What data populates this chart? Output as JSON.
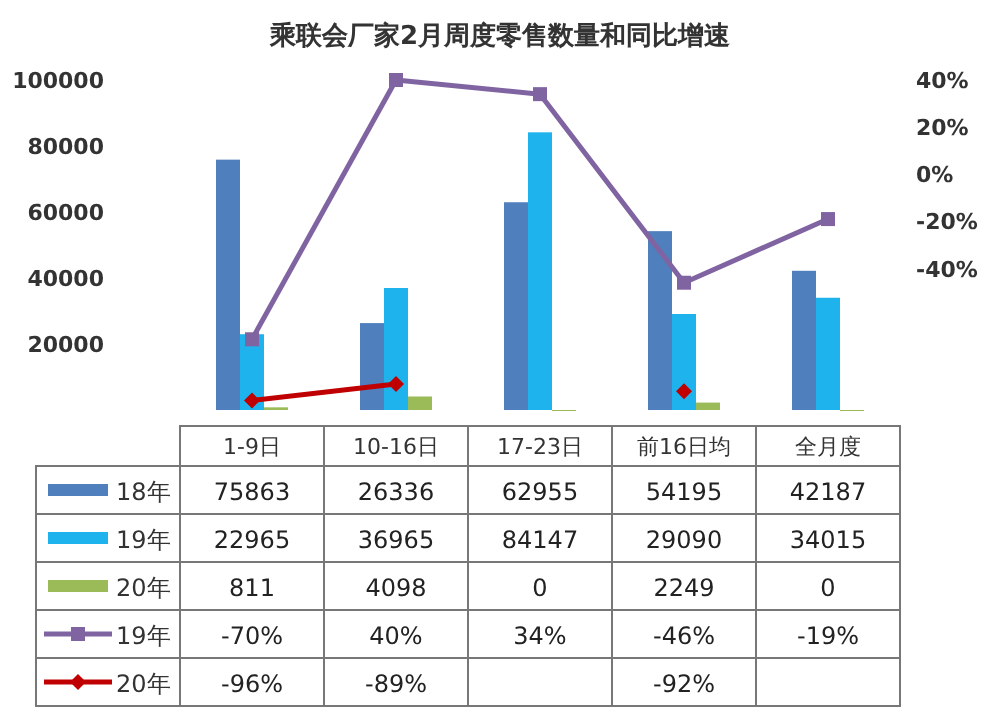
{
  "chart_data": {
    "type": "bar",
    "title": "乘联会厂家2月周度零售数量和同比增速",
    "categories": [
      "1-9日",
      "10-16日",
      "17-23日",
      "前16日均",
      "全月度"
    ],
    "series": [
      {
        "name": "18年",
        "color": "#4f7fbd",
        "values": [
          75863,
          26336,
          62955,
          54195,
          42187
        ]
      },
      {
        "name": "19年",
        "color": "#1fb3ee",
        "values": [
          22965,
          36965,
          84147,
          29090,
          34015
        ]
      },
      {
        "name": "20年",
        "color": "#9bbb59",
        "values": [
          811,
          4098,
          0,
          2249,
          0
        ]
      },
      {
        "name": "19年",
        "type": "line",
        "axis": "y2",
        "marker": "square",
        "color": "#8064a2",
        "values": [
          -70,
          40,
          34,
          -46,
          -19
        ],
        "value_labels": [
          "-70%",
          "40%",
          "34%",
          "-46%",
          "-19%"
        ]
      },
      {
        "name": "20年",
        "type": "line",
        "axis": "y2",
        "marker": "diamond",
        "color": "#c00000",
        "values": [
          -96,
          -89,
          null,
          -92,
          null
        ],
        "value_labels": [
          "-96%",
          "-89%",
          null,
          "-92%",
          null
        ]
      }
    ],
    "ylim": [
      0,
      100000
    ],
    "yticks": [
      20000,
      40000,
      60000,
      80000,
      100000
    ],
    "y2lim": [
      -100,
      40
    ],
    "y2ticks": [
      {
        "value": 40,
        "label": "40%"
      },
      {
        "value": 20,
        "label": "20%"
      },
      {
        "value": 0,
        "label": "0%"
      },
      {
        "value": -20,
        "label": "-20%"
      },
      {
        "value": -40,
        "label": "-40%"
      }
    ],
    "data_labels": true,
    "legend": "bottom"
  }
}
